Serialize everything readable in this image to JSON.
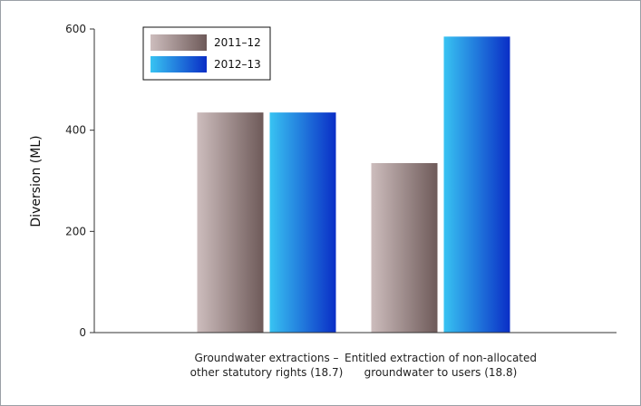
{
  "chart_data": {
    "type": "bar",
    "title": "",
    "ylabel": "Diversion (ML)",
    "xlabel": "",
    "ylim": [
      0,
      600
    ],
    "yticks": [
      "0",
      "200",
      "400",
      "600"
    ],
    "grid": false,
    "legend_position": "top-left",
    "categories": [
      [
        "Groundwater extractions –",
        "other statutory rights (18.7)"
      ],
      [
        "Entitled extraction of non-allocated",
        "groundwater to users (18.8)"
      ]
    ],
    "series": [
      {
        "name": "2011–12",
        "values": [
          435,
          335
        ],
        "color_light": "#cdbdbd",
        "color_dark": "#6e5a59"
      },
      {
        "name": "2012–13",
        "values": [
          435,
          585
        ],
        "color_light": "#38c3f2",
        "color_dark": "#0a2ec6"
      }
    ]
  }
}
